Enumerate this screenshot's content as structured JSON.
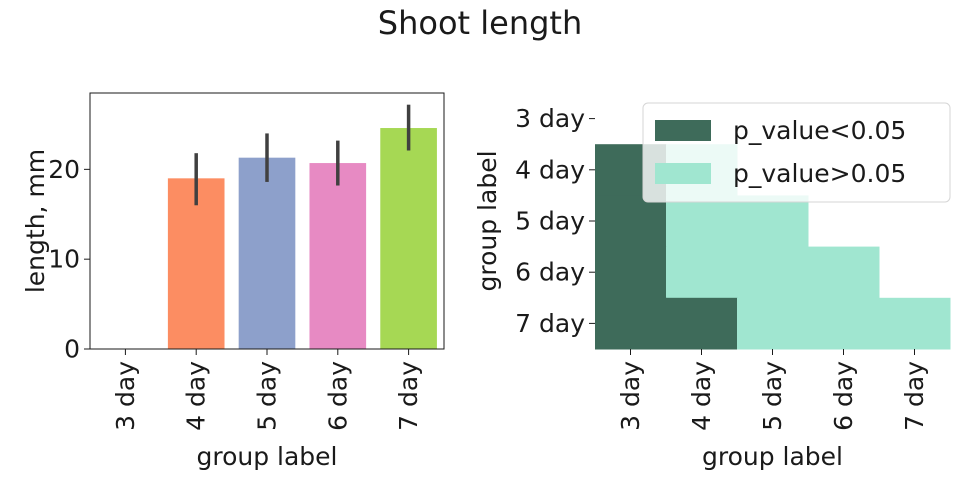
{
  "title": "Shoot length",
  "chart_data": [
    {
      "type": "bar",
      "categories": [
        "3 day",
        "4 day",
        "5 day",
        "6 day",
        "7 day"
      ],
      "values": [
        0,
        19.0,
        21.3,
        20.7,
        24.6
      ],
      "error_low": [
        0,
        16.0,
        18.6,
        18.2,
        22.1
      ],
      "error_high": [
        0,
        21.8,
        24.0,
        23.2,
        27.2
      ],
      "colors": [
        "#66c2a5",
        "#fc8d62",
        "#8da0cb",
        "#e78ac3",
        "#a6d854"
      ],
      "xlabel": "group label",
      "ylabel": "length, mm",
      "ylim": [
        0,
        28.5
      ],
      "yticks": [
        0,
        10,
        20
      ]
    },
    {
      "type": "heatmap",
      "rows": [
        "3 day",
        "4 day",
        "5 day",
        "6 day",
        "7 day"
      ],
      "columns": [
        "3 day",
        "4 day",
        "5 day",
        "6 day",
        "7 day"
      ],
      "matrix": [
        [
          null,
          null,
          null,
          null,
          null
        ],
        [
          "p_value<0.05",
          "p_value>0.05",
          null,
          null,
          null
        ],
        [
          "p_value<0.05",
          "p_value>0.05",
          "p_value>0.05",
          null,
          null
        ],
        [
          "p_value<0.05",
          "p_value>0.05",
          "p_value>0.05",
          "p_value>0.05",
          null
        ],
        [
          "p_value<0.05",
          "p_value<0.05",
          "p_value>0.05",
          "p_value>0.05",
          "p_value>0.05"
        ]
      ],
      "legend": [
        {
          "label": "p_value<0.05",
          "color": "#3e6b5a"
        },
        {
          "label": "p_value>0.05",
          "color": "#a0e6d0"
        }
      ],
      "legend_position": "upper right",
      "xlabel": "group label",
      "ylabel": "group label"
    }
  ]
}
